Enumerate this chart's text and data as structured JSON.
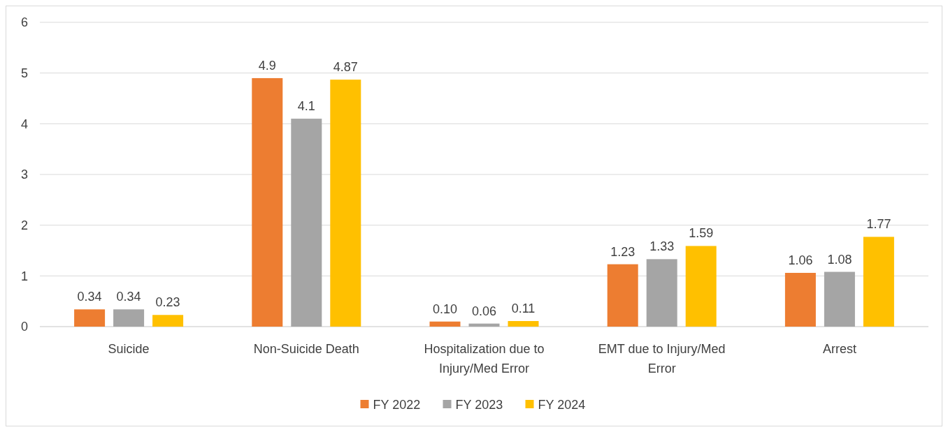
{
  "chart_data": {
    "type": "bar",
    "categories": [
      "Suicide",
      "Non-Suicide Death",
      "Hospitalization due to Injury/Med Error",
      "EMT due to Injury/Med Error",
      "Arrest"
    ],
    "series": [
      {
        "name": "FY 2022",
        "color": "#ed7d31",
        "values": [
          0.34,
          4.9,
          0.1,
          1.23,
          1.06
        ],
        "value_labels": [
          "0.34",
          "4.9",
          "0.10",
          "1.23",
          "1.06"
        ]
      },
      {
        "name": "FY 2023",
        "color": "#a5a5a5",
        "values": [
          0.34,
          4.1,
          0.06,
          1.33,
          1.08
        ],
        "value_labels": [
          "0.34",
          "4.1",
          "0.06",
          "1.33",
          "1.08"
        ]
      },
      {
        "name": "FY 2024",
        "color": "#ffc000",
        "values": [
          0.23,
          4.87,
          0.11,
          1.59,
          1.77
        ],
        "value_labels": [
          "0.23",
          "4.87",
          "0.11",
          "1.59",
          "1.77"
        ]
      }
    ],
    "ylim": [
      0,
      6
    ],
    "yticks": [
      0,
      1,
      2,
      3,
      4,
      5,
      6
    ],
    "grid": "y",
    "legend": "bottom"
  }
}
